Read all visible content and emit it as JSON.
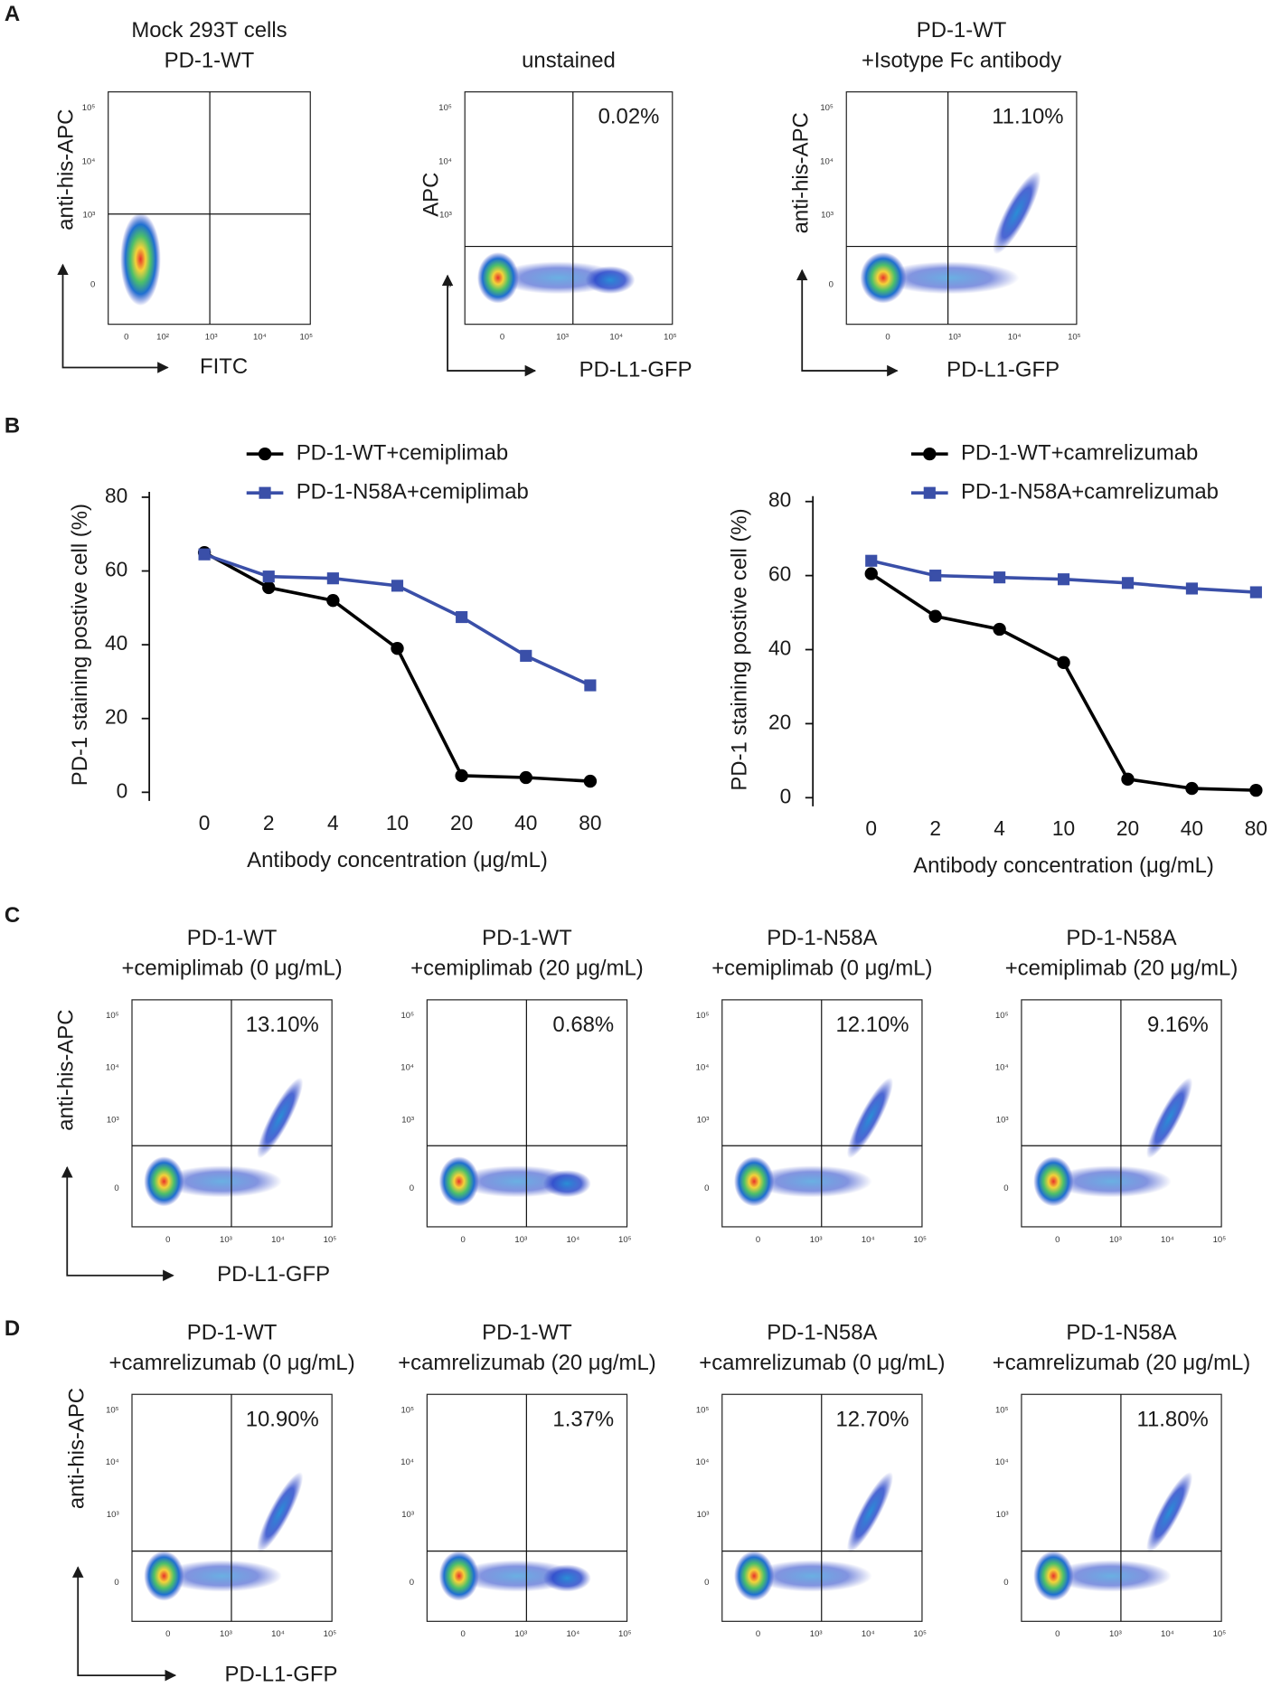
{
  "panel_labels": [
    "A",
    "B",
    "C",
    "D"
  ],
  "flow_plots": [
    {
      "title": [
        "Mock 293T cells",
        "PD-1-WT"
      ],
      "y_label": "anti-his-APC",
      "x_label": "FITC",
      "xticks": [
        "0",
        "10²",
        "10³",
        "10⁴",
        "10⁵"
      ],
      "yticks": [
        "0",
        "10³",
        "10⁴",
        "10⁵"
      ]
    },
    {
      "title": [
        "unstained"
      ],
      "y_label": "APC",
      "x_label": "PD-L1-GFP",
      "percent": "0.02%",
      "xticks": [
        "0",
        "10³",
        "10⁴",
        "10⁵"
      ],
      "yticks": [
        "0",
        "10³",
        "10⁴",
        "10⁵"
      ]
    },
    {
      "title": [
        "PD-1-WT",
        "+Isotype Fc antibody"
      ],
      "y_label": "anti-his-APC",
      "x_label": "PD-L1-GFP",
      "percent": "11.10%",
      "xticks": [
        "0",
        "10³",
        "10⁴",
        "10⁵"
      ],
      "yticks": [
        "0",
        "10³",
        "10⁴",
        "10⁵"
      ]
    },
    {
      "title": [
        "PD-1-WT",
        "+cemiplimab (0 μg/mL)"
      ],
      "y_label": "anti-his-APC",
      "x_label": "PD-L1-GFP",
      "percent": "13.10%",
      "xticks": [
        "0",
        "10³",
        "10⁴",
        "10⁵"
      ],
      "yticks": [
        "0",
        "10³",
        "10⁴",
        "10⁵"
      ]
    },
    {
      "title": [
        "PD-1-WT",
        "+cemiplimab (20 μg/mL)"
      ],
      "percent": "0.68%",
      "xticks": [
        "0",
        "10³",
        "10⁴",
        "10⁵"
      ],
      "yticks": [
        "0",
        "10³",
        "10⁴",
        "10⁵"
      ]
    },
    {
      "title": [
        "PD-1-N58A",
        "+cemiplimab (0 μg/mL)"
      ],
      "percent": "12.10%",
      "xticks": [
        "0",
        "10³",
        "10⁴",
        "10⁵"
      ],
      "yticks": [
        "0",
        "10³",
        "10⁴",
        "10⁵"
      ]
    },
    {
      "title": [
        "PD-1-N58A",
        "+cemiplimab (20 μg/mL)"
      ],
      "percent": "9.16%",
      "xticks": [
        "0",
        "10³",
        "10⁴",
        "10⁵"
      ],
      "yticks": [
        "0",
        "10³",
        "10⁴",
        "10⁵"
      ]
    },
    {
      "title": [
        "PD-1-WT",
        "+camrelizumab (0 μg/mL)"
      ],
      "y_label": "anti-his-APC",
      "x_label": "PD-L1-GFP",
      "percent": "10.90%",
      "xticks": [
        "0",
        "10³",
        "10⁴",
        "10⁵"
      ],
      "yticks": [
        "0",
        "10³",
        "10⁴",
        "10⁵"
      ]
    },
    {
      "title": [
        "PD-1-WT",
        "+camrelizumab (20 μg/mL)"
      ],
      "percent": "1.37%",
      "xticks": [
        "0",
        "10³",
        "10⁴",
        "10⁵"
      ],
      "yticks": [
        "0",
        "10³",
        "10⁴",
        "10⁵"
      ]
    },
    {
      "title": [
        "PD-1-N58A",
        "+camrelizumab (0 μg/mL)"
      ],
      "percent": "12.70%",
      "xticks": [
        "0",
        "10³",
        "10⁴",
        "10⁵"
      ],
      "yticks": [
        "0",
        "10³",
        "10⁴",
        "10⁵"
      ]
    },
    {
      "title": [
        "PD-1-N58A",
        "+camrelizumab (20 μg/mL)"
      ],
      "percent": "11.80%",
      "xticks": [
        "0",
        "10³",
        "10⁴",
        "10⁵"
      ],
      "yticks": [
        "0",
        "10³",
        "10⁴",
        "10⁵"
      ]
    }
  ],
  "chart_data": [
    {
      "type": "line",
      "y_label": "PD-1 staining postive cell (%)",
      "x_label": "Antibody concentration (μg/mL)",
      "categories": [
        "0",
        "2",
        "4",
        "10",
        "20",
        "40",
        "80"
      ],
      "ylim": [
        0,
        80
      ],
      "yticks": [
        0,
        20,
        40,
        60,
        80
      ],
      "series": [
        {
          "name": "PD-1-WT+cemiplimab",
          "color": "#000000",
          "marker": "circle",
          "values": [
            65,
            55.5,
            52,
            39,
            4.5,
            4,
            3
          ]
        },
        {
          "name": "PD-1-N58A+cemiplimab",
          "color": "#3a4fa8",
          "marker": "square",
          "values": [
            64.5,
            58.5,
            58,
            56,
            47.5,
            37,
            29
          ]
        }
      ]
    },
    {
      "type": "line",
      "y_label": "PD-1 staining postive cell (%)",
      "x_label": "Antibody concentration (μg/mL)",
      "categories": [
        "0",
        "2",
        "4",
        "10",
        "20",
        "40",
        "80"
      ],
      "ylim": [
        0,
        80
      ],
      "yticks": [
        0,
        20,
        40,
        60,
        80
      ],
      "series": [
        {
          "name": "PD-1-WT+camrelizumab",
          "color": "#000000",
          "marker": "circle",
          "values": [
            60.5,
            49,
            45.5,
            36.5,
            5,
            2.5,
            2
          ]
        },
        {
          "name": "PD-1-N58A+camrelizumab",
          "color": "#3a4fa8",
          "marker": "square",
          "values": [
            64,
            60,
            59.5,
            59,
            58,
            56.5,
            55.5
          ]
        }
      ]
    }
  ]
}
